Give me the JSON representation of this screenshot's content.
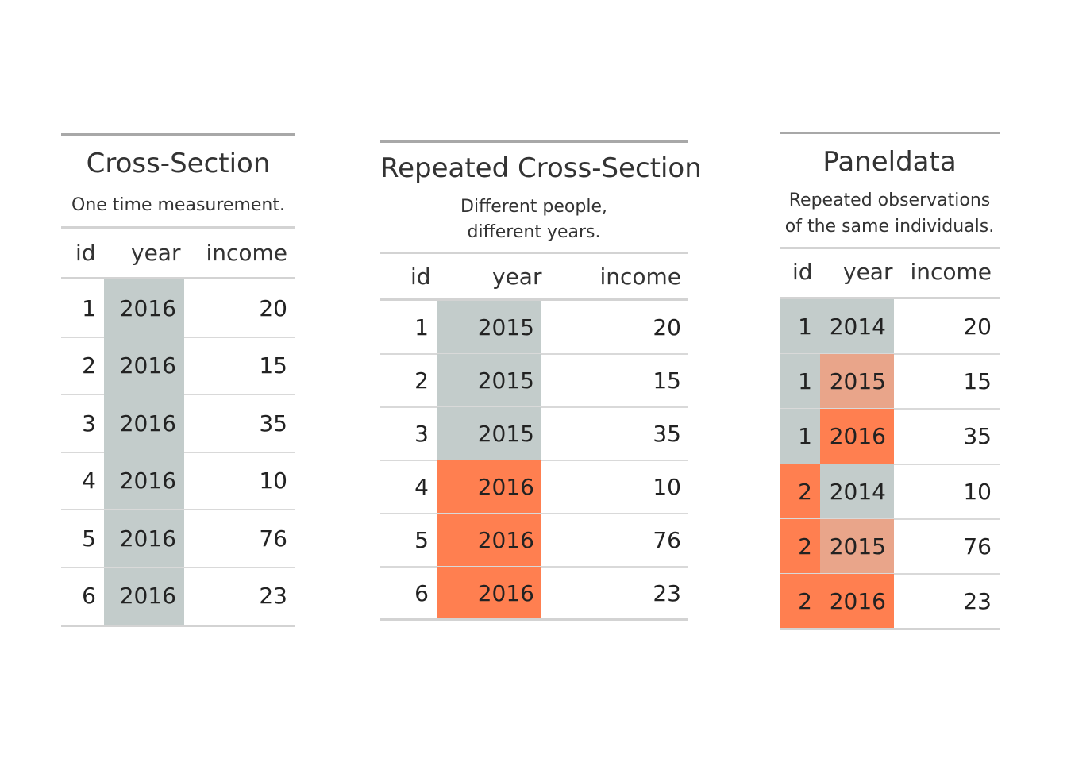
{
  "colors": {
    "gray": "#c3cccb",
    "orange": "#ff7f50",
    "light_orange": "#e9a58a",
    "none": "transparent"
  },
  "tables": [
    {
      "title": "Cross-Section",
      "subtitle": [
        "One time measurement."
      ],
      "columns": [
        "id",
        "year",
        "income"
      ],
      "rows": [
        {
          "id": "1",
          "year": "2016",
          "income": "20",
          "id_color": "none",
          "year_color": "gray"
        },
        {
          "id": "2",
          "year": "2016",
          "income": "15",
          "id_color": "none",
          "year_color": "gray"
        },
        {
          "id": "3",
          "year": "2016",
          "income": "35",
          "id_color": "none",
          "year_color": "gray"
        },
        {
          "id": "4",
          "year": "2016",
          "income": "10",
          "id_color": "none",
          "year_color": "gray"
        },
        {
          "id": "5",
          "year": "2016",
          "income": "76",
          "id_color": "none",
          "year_color": "gray"
        },
        {
          "id": "6",
          "year": "2016",
          "income": "23",
          "id_color": "none",
          "year_color": "gray"
        }
      ]
    },
    {
      "title": "Repeated Cross-Section",
      "subtitle": [
        "Different people,",
        "different years."
      ],
      "columns": [
        "id",
        "year",
        "income"
      ],
      "rows": [
        {
          "id": "1",
          "year": "2015",
          "income": "20",
          "id_color": "none",
          "year_color": "gray"
        },
        {
          "id": "2",
          "year": "2015",
          "income": "15",
          "id_color": "none",
          "year_color": "gray"
        },
        {
          "id": "3",
          "year": "2015",
          "income": "35",
          "id_color": "none",
          "year_color": "gray"
        },
        {
          "id": "4",
          "year": "2016",
          "income": "10",
          "id_color": "none",
          "year_color": "orange"
        },
        {
          "id": "5",
          "year": "2016",
          "income": "76",
          "id_color": "none",
          "year_color": "orange"
        },
        {
          "id": "6",
          "year": "2016",
          "income": "23",
          "id_color": "none",
          "year_color": "orange"
        }
      ]
    },
    {
      "title": "Paneldata",
      "subtitle": [
        "Repeated observations",
        "of the same individuals."
      ],
      "columns": [
        "id",
        "year",
        "income"
      ],
      "rows": [
        {
          "id": "1",
          "year": "2014",
          "income": "20",
          "id_color": "gray",
          "year_color": "gray"
        },
        {
          "id": "1",
          "year": "2015",
          "income": "15",
          "id_color": "gray",
          "year_color": "light_orange"
        },
        {
          "id": "1",
          "year": "2016",
          "income": "35",
          "id_color": "gray",
          "year_color": "orange"
        },
        {
          "id": "2",
          "year": "2014",
          "income": "10",
          "id_color": "orange",
          "year_color": "gray"
        },
        {
          "id": "2",
          "year": "2015",
          "income": "76",
          "id_color": "orange",
          "year_color": "light_orange"
        },
        {
          "id": "2",
          "year": "2016",
          "income": "23",
          "id_color": "orange",
          "year_color": "orange"
        }
      ]
    }
  ]
}
